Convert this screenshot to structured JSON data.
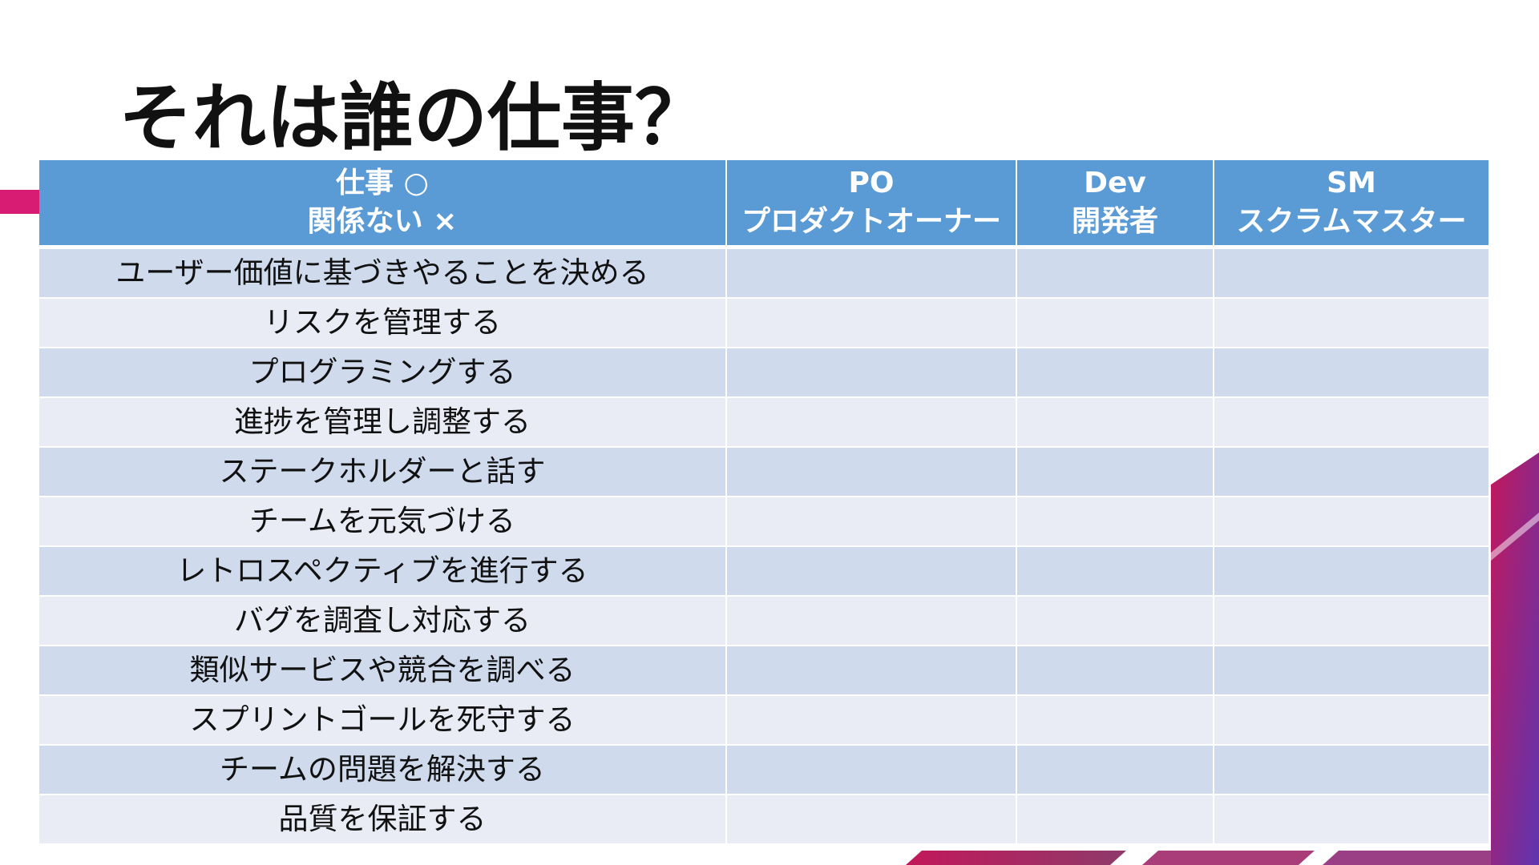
{
  "slide": {
    "title": "それは誰の仕事？"
  },
  "table": {
    "headers": [
      {
        "line1": "仕事 ○",
        "line2": "関係ない ×"
      },
      {
        "line1": "PO",
        "line2": "プロダクトオーナー"
      },
      {
        "line1": "Dev",
        "line2": "開発者"
      },
      {
        "line1": "SM",
        "line2": "スクラムマスター"
      }
    ],
    "rows": [
      {
        "task": "ユーザー価値に基づきやることを決める",
        "po": "",
        "dev": "",
        "sm": ""
      },
      {
        "task": "リスクを管理する",
        "po": "",
        "dev": "",
        "sm": ""
      },
      {
        "task": "プログラミングする",
        "po": "",
        "dev": "",
        "sm": ""
      },
      {
        "task": "進捗を管理し調整する",
        "po": "",
        "dev": "",
        "sm": ""
      },
      {
        "task": "ステークホルダーと話す",
        "po": "",
        "dev": "",
        "sm": ""
      },
      {
        "task": "チームを元気づける",
        "po": "",
        "dev": "",
        "sm": ""
      },
      {
        "task": "レトロスペクティブを進行する",
        "po": "",
        "dev": "",
        "sm": ""
      },
      {
        "task": "バグを調査し対応する",
        "po": "",
        "dev": "",
        "sm": ""
      },
      {
        "task": "類似サービスや競合を調べる",
        "po": "",
        "dev": "",
        "sm": ""
      },
      {
        "task": "スプリントゴールを死守する",
        "po": "",
        "dev": "",
        "sm": ""
      },
      {
        "task": "チームの問題を解決する",
        "po": "",
        "dev": "",
        "sm": ""
      },
      {
        "task": "品質を保証する",
        "po": "",
        "dev": "",
        "sm": ""
      }
    ]
  },
  "colors": {
    "header_bg": "#5b9bd5",
    "row_dark": "#cfdaec",
    "row_light": "#e9ecf5",
    "accent_magenta": "#d81b73",
    "accent_purple": "#6a2bb0"
  }
}
